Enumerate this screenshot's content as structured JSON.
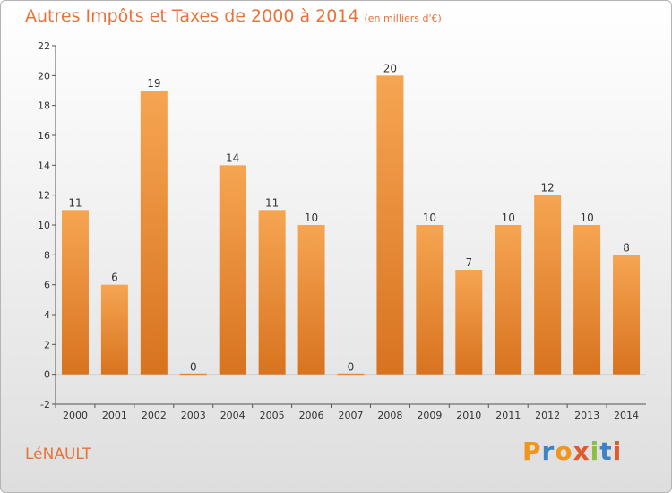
{
  "header": {
    "title": "Autres Impôts et Taxes de 2000 à 2014",
    "unit": "(en milliers d'€)"
  },
  "footer": {
    "commune": "LéNAULT",
    "logo": "Proxiti"
  },
  "colors": {
    "title": "#e8733a",
    "bar_top": "#f6a552",
    "bar_bottom": "#d8731f",
    "logo_letters": [
      "#f1951f",
      "#3d82c4",
      "#f1951f",
      "#e05a2b",
      "#8cbf3f",
      "#3d82c4",
      "#e05a2b"
    ]
  },
  "chart_data": {
    "type": "bar",
    "title": "Autres Impôts et Taxes de 2000 à 2014",
    "subtitle": "(en milliers d'€)",
    "categories": [
      "2000",
      "2001",
      "2002",
      "2003",
      "2004",
      "2005",
      "2006",
      "2007",
      "2008",
      "2009",
      "2010",
      "2011",
      "2012",
      "2013",
      "2014"
    ],
    "values": [
      11,
      6,
      19,
      0,
      14,
      11,
      10,
      0,
      20,
      10,
      7,
      10,
      12,
      10,
      8
    ],
    "ylim": [
      -2,
      22
    ],
    "yticks": [
      -2,
      0,
      2,
      4,
      6,
      8,
      10,
      12,
      14,
      16,
      18,
      20,
      22
    ],
    "grid": false,
    "legend": "none"
  }
}
